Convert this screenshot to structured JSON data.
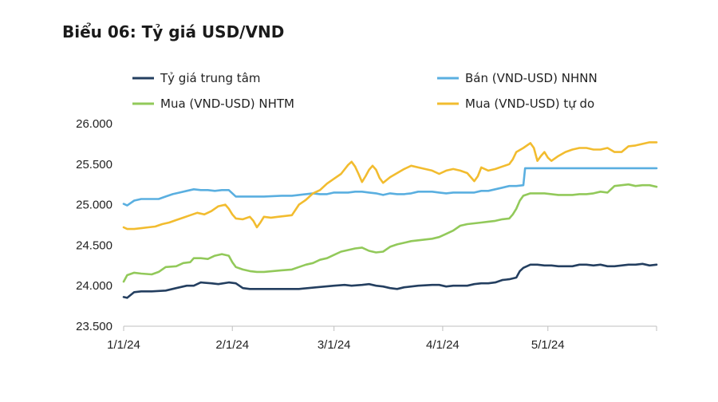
{
  "chart_data": {
    "type": "line",
    "title": "Biểu 06: Tỷ giá USD/VND",
    "xlabel": "",
    "ylabel": "",
    "ylim": [
      23500,
      26000
    ],
    "yticks": [
      "23.500",
      "24.000",
      "24.500",
      "25.000",
      "25.500",
      "26.000"
    ],
    "ytick_values": [
      23500,
      24000,
      24500,
      25000,
      25500,
      26000
    ],
    "xticks": [
      "1/1/24",
      "2/1/24",
      "3/1/24",
      "4/1/24",
      "5/1/24"
    ],
    "xtick_days": [
      0,
      31,
      60,
      91,
      121
    ],
    "x_range_days": [
      0,
      152
    ],
    "legend_position": "top",
    "grid": false,
    "series": [
      {
        "name": "Tỷ giá trung tâm",
        "color": "#243f60",
        "points": [
          [
            0,
            23860
          ],
          [
            1,
            23850
          ],
          [
            3,
            23920
          ],
          [
            5,
            23930
          ],
          [
            8,
            23930
          ],
          [
            12,
            23940
          ],
          [
            15,
            23970
          ],
          [
            18,
            24000
          ],
          [
            20,
            24000
          ],
          [
            22,
            24040
          ],
          [
            25,
            24030
          ],
          [
            27,
            24020
          ],
          [
            30,
            24040
          ],
          [
            32,
            24030
          ],
          [
            34,
            23970
          ],
          [
            36,
            23960
          ],
          [
            40,
            23960
          ],
          [
            45,
            23960
          ],
          [
            50,
            23960
          ],
          [
            55,
            23980
          ],
          [
            60,
            24000
          ],
          [
            63,
            24010
          ],
          [
            65,
            24000
          ],
          [
            68,
            24010
          ],
          [
            70,
            24020
          ],
          [
            72,
            24000
          ],
          [
            74,
            23990
          ],
          [
            76,
            23970
          ],
          [
            78,
            23960
          ],
          [
            80,
            23980
          ],
          [
            84,
            24000
          ],
          [
            88,
            24010
          ],
          [
            90,
            24010
          ],
          [
            92,
            23990
          ],
          [
            94,
            24000
          ],
          [
            96,
            24000
          ],
          [
            98,
            24000
          ],
          [
            100,
            24020
          ],
          [
            102,
            24030
          ],
          [
            104,
            24030
          ],
          [
            106,
            24040
          ],
          [
            108,
            24070
          ],
          [
            110,
            24080
          ],
          [
            112,
            24100
          ],
          [
            113,
            24180
          ],
          [
            114,
            24220
          ],
          [
            116,
            24260
          ],
          [
            118,
            24260
          ],
          [
            120,
            24250
          ],
          [
            122,
            24250
          ],
          [
            124,
            24240
          ],
          [
            126,
            24240
          ],
          [
            128,
            24240
          ],
          [
            130,
            24260
          ],
          [
            132,
            24260
          ],
          [
            134,
            24250
          ],
          [
            136,
            24260
          ],
          [
            138,
            24240
          ],
          [
            140,
            24240
          ],
          [
            142,
            24250
          ],
          [
            144,
            24260
          ],
          [
            146,
            24260
          ],
          [
            148,
            24270
          ],
          [
            150,
            24250
          ],
          [
            152,
            24260
          ]
        ]
      },
      {
        "name": "Bán (VND-USD) NHNN",
        "color": "#5aafe0",
        "points": [
          [
            0,
            25010
          ],
          [
            1,
            24990
          ],
          [
            3,
            25050
          ],
          [
            5,
            25070
          ],
          [
            8,
            25070
          ],
          [
            10,
            25070
          ],
          [
            12,
            25100
          ],
          [
            14,
            25130
          ],
          [
            16,
            25150
          ],
          [
            18,
            25170
          ],
          [
            20,
            25190
          ],
          [
            22,
            25180
          ],
          [
            24,
            25180
          ],
          [
            26,
            25170
          ],
          [
            28,
            25180
          ],
          [
            30,
            25180
          ],
          [
            32,
            25100
          ],
          [
            34,
            25100
          ],
          [
            36,
            25100
          ],
          [
            40,
            25100
          ],
          [
            45,
            25110
          ],
          [
            48,
            25110
          ],
          [
            50,
            25120
          ],
          [
            52,
            25130
          ],
          [
            54,
            25140
          ],
          [
            56,
            25130
          ],
          [
            58,
            25130
          ],
          [
            60,
            25150
          ],
          [
            62,
            25150
          ],
          [
            64,
            25150
          ],
          [
            66,
            25160
          ],
          [
            68,
            25160
          ],
          [
            70,
            25150
          ],
          [
            72,
            25140
          ],
          [
            74,
            25120
          ],
          [
            76,
            25140
          ],
          [
            78,
            25130
          ],
          [
            80,
            25130
          ],
          [
            82,
            25140
          ],
          [
            84,
            25160
          ],
          [
            86,
            25160
          ],
          [
            88,
            25160
          ],
          [
            90,
            25150
          ],
          [
            92,
            25140
          ],
          [
            94,
            25150
          ],
          [
            96,
            25150
          ],
          [
            100,
            25150
          ],
          [
            102,
            25170
          ],
          [
            104,
            25170
          ],
          [
            106,
            25190
          ],
          [
            108,
            25210
          ],
          [
            110,
            25230
          ],
          [
            112,
            25230
          ],
          [
            114,
            25240
          ],
          [
            114.5,
            25450
          ],
          [
            120,
            25450
          ],
          [
            130,
            25450
          ],
          [
            140,
            25450
          ],
          [
            152,
            25450
          ]
        ]
      },
      {
        "name": "Mua (VND-USD) NHTM",
        "color": "#92c95a",
        "points": [
          [
            0,
            24050
          ],
          [
            1,
            24130
          ],
          [
            3,
            24160
          ],
          [
            5,
            24150
          ],
          [
            8,
            24140
          ],
          [
            10,
            24170
          ],
          [
            12,
            24230
          ],
          [
            15,
            24240
          ],
          [
            17,
            24280
          ],
          [
            19,
            24290
          ],
          [
            20,
            24340
          ],
          [
            22,
            24340
          ],
          [
            24,
            24330
          ],
          [
            26,
            24370
          ],
          [
            28,
            24390
          ],
          [
            30,
            24370
          ],
          [
            31,
            24290
          ],
          [
            32,
            24230
          ],
          [
            34,
            24200
          ],
          [
            36,
            24180
          ],
          [
            38,
            24170
          ],
          [
            40,
            24170
          ],
          [
            45,
            24190
          ],
          [
            48,
            24200
          ],
          [
            50,
            24230
          ],
          [
            52,
            24260
          ],
          [
            54,
            24280
          ],
          [
            56,
            24320
          ],
          [
            58,
            24340
          ],
          [
            60,
            24380
          ],
          [
            62,
            24420
          ],
          [
            64,
            24440
          ],
          [
            66,
            24460
          ],
          [
            68,
            24470
          ],
          [
            70,
            24430
          ],
          [
            72,
            24410
          ],
          [
            74,
            24420
          ],
          [
            76,
            24480
          ],
          [
            78,
            24510
          ],
          [
            80,
            24530
          ],
          [
            82,
            24550
          ],
          [
            84,
            24560
          ],
          [
            86,
            24570
          ],
          [
            88,
            24580
          ],
          [
            90,
            24600
          ],
          [
            92,
            24640
          ],
          [
            94,
            24680
          ],
          [
            96,
            24740
          ],
          [
            98,
            24760
          ],
          [
            100,
            24770
          ],
          [
            102,
            24780
          ],
          [
            104,
            24790
          ],
          [
            106,
            24800
          ],
          [
            108,
            24820
          ],
          [
            110,
            24830
          ],
          [
            111,
            24880
          ],
          [
            112,
            24950
          ],
          [
            113,
            25050
          ],
          [
            114,
            25110
          ],
          [
            116,
            25140
          ],
          [
            118,
            25140
          ],
          [
            120,
            25140
          ],
          [
            122,
            25130
          ],
          [
            124,
            25120
          ],
          [
            126,
            25120
          ],
          [
            128,
            25120
          ],
          [
            130,
            25130
          ],
          [
            132,
            25130
          ],
          [
            134,
            25140
          ],
          [
            136,
            25160
          ],
          [
            138,
            25150
          ],
          [
            140,
            25230
          ],
          [
            142,
            25240
          ],
          [
            144,
            25250
          ],
          [
            146,
            25230
          ],
          [
            148,
            25240
          ],
          [
            150,
            25240
          ],
          [
            152,
            25220
          ]
        ]
      },
      {
        "name": "Mua (VND-USD) tự do",
        "color": "#f2bc2f",
        "points": [
          [
            0,
            24720
          ],
          [
            1,
            24700
          ],
          [
            3,
            24700
          ],
          [
            5,
            24710
          ],
          [
            7,
            24720
          ],
          [
            9,
            24730
          ],
          [
            11,
            24760
          ],
          [
            13,
            24780
          ],
          [
            15,
            24810
          ],
          [
            17,
            24840
          ],
          [
            19,
            24870
          ],
          [
            21,
            24900
          ],
          [
            23,
            24880
          ],
          [
            25,
            24920
          ],
          [
            27,
            24980
          ],
          [
            29,
            25000
          ],
          [
            30,
            24950
          ],
          [
            31,
            24880
          ],
          [
            32,
            24830
          ],
          [
            34,
            24820
          ],
          [
            36,
            24850
          ],
          [
            37,
            24800
          ],
          [
            38,
            24720
          ],
          [
            39,
            24780
          ],
          [
            40,
            24850
          ],
          [
            42,
            24840
          ],
          [
            44,
            24850
          ],
          [
            46,
            24860
          ],
          [
            48,
            24870
          ],
          [
            50,
            25000
          ],
          [
            52,
            25060
          ],
          [
            54,
            25140
          ],
          [
            56,
            25180
          ],
          [
            58,
            25260
          ],
          [
            60,
            25320
          ],
          [
            62,
            25380
          ],
          [
            64,
            25490
          ],
          [
            65,
            25530
          ],
          [
            66,
            25470
          ],
          [
            67,
            25380
          ],
          [
            68,
            25280
          ],
          [
            69,
            25350
          ],
          [
            70,
            25430
          ],
          [
            71,
            25480
          ],
          [
            72,
            25430
          ],
          [
            73,
            25330
          ],
          [
            74,
            25270
          ],
          [
            76,
            25340
          ],
          [
            78,
            25390
          ],
          [
            80,
            25440
          ],
          [
            82,
            25480
          ],
          [
            84,
            25460
          ],
          [
            86,
            25440
          ],
          [
            88,
            25420
          ],
          [
            90,
            25380
          ],
          [
            92,
            25420
          ],
          [
            94,
            25440
          ],
          [
            96,
            25420
          ],
          [
            98,
            25390
          ],
          [
            100,
            25290
          ],
          [
            101,
            25350
          ],
          [
            102,
            25460
          ],
          [
            104,
            25420
          ],
          [
            106,
            25440
          ],
          [
            108,
            25470
          ],
          [
            110,
            25500
          ],
          [
            111,
            25560
          ],
          [
            112,
            25650
          ],
          [
            114,
            25700
          ],
          [
            116,
            25760
          ],
          [
            117,
            25700
          ],
          [
            118,
            25540
          ],
          [
            119,
            25600
          ],
          [
            120,
            25650
          ],
          [
            121,
            25580
          ],
          [
            122,
            25540
          ],
          [
            124,
            25600
          ],
          [
            126,
            25650
          ],
          [
            128,
            25680
          ],
          [
            130,
            25700
          ],
          [
            132,
            25700
          ],
          [
            134,
            25680
          ],
          [
            136,
            25680
          ],
          [
            138,
            25700
          ],
          [
            140,
            25650
          ],
          [
            142,
            25650
          ],
          [
            144,
            25720
          ],
          [
            146,
            25730
          ],
          [
            148,
            25750
          ],
          [
            150,
            25770
          ],
          [
            152,
            25770
          ]
        ]
      }
    ]
  }
}
